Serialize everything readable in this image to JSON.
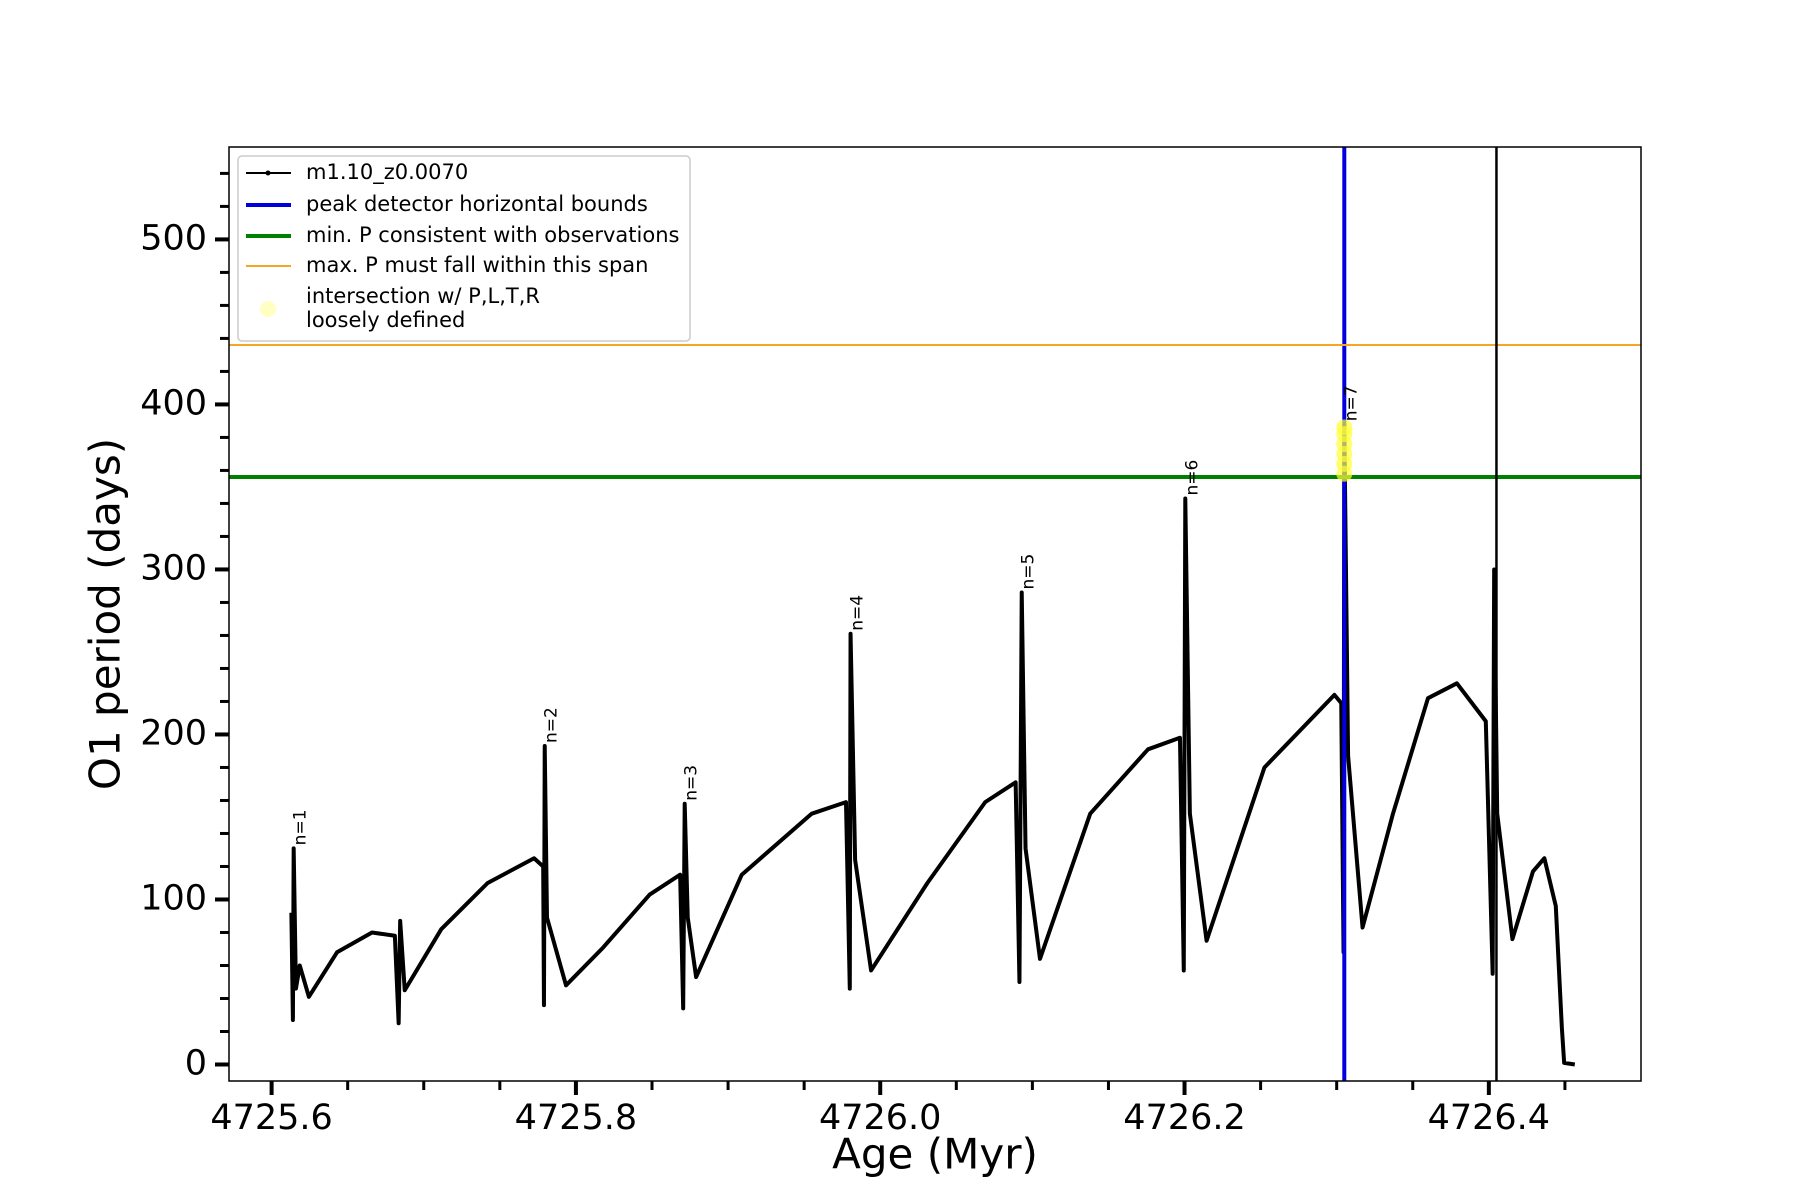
{
  "chart_data": {
    "type": "line",
    "xlabel": "Age (Myr)",
    "ylabel": "O1 period (days)",
    "xlim": [
      4725.572,
      4726.5
    ],
    "ylim": [
      -10,
      556
    ],
    "xticks": [
      4725.6,
      4725.8,
      {
        "value": 4726,
        "label": "4726.0"
      },
      4726.2,
      4726.4
    ],
    "yticks": [
      0,
      100,
      200,
      300,
      400,
      500
    ],
    "xminorticks": [
      4725.65,
      4725.7,
      4725.75,
      4725.85,
      4725.9,
      4725.95,
      4726.05,
      4726.1,
      4726.15,
      4726.25,
      4726.3,
      4726.35,
      4726.45
    ],
    "yminorticks": [
      20,
      40,
      60,
      80,
      120,
      140,
      160,
      180,
      220,
      240,
      260,
      280,
      320,
      340,
      360,
      380,
      420,
      440,
      460,
      480,
      520,
      540
    ],
    "series": [
      {
        "name": "m1.10_z0.0070",
        "color": "#000000",
        "x": [
          4725.613,
          4725.614,
          4725.6145,
          4725.616,
          4725.6185,
          4725.6245,
          4725.643,
          4725.666,
          4725.681,
          4725.6835,
          4725.6845,
          4725.6875,
          4725.7115,
          4725.742,
          4725.7725,
          4725.7785,
          4725.779,
          4725.7795,
          4725.781,
          4725.7935,
          4725.818,
          4725.8485,
          4725.8685,
          4725.8705,
          4725.8715,
          4725.8735,
          4725.879,
          4725.909,
          4725.955,
          4725.9775,
          4725.98,
          4725.9805,
          4725.9835,
          4725.994,
          4726.031,
          4726.069,
          4726.089,
          4726.0915,
          4726.093,
          4726.0955,
          4726.105,
          4726.138,
          4726.176,
          4726.197,
          4726.1995,
          4726.2005,
          4726.2035,
          4726.2145,
          4726.2525,
          4726.2985,
          4726.303,
          4726.3045,
          4726.305,
          4726.3075,
          4726.317,
          4726.337,
          4726.36,
          4726.379,
          4726.398,
          4726.4025,
          4726.4035,
          4726.4055,
          4726.4155,
          4726.429,
          4726.4365,
          4726.444,
          4726.448,
          4726.4495,
          4726.4565
        ],
        "values": [
          92,
          27,
          131,
          46,
          60,
          41,
          68,
          80,
          78,
          25,
          87,
          45,
          82,
          110,
          125,
          120,
          36,
          193,
          89,
          48,
          71,
          103,
          115,
          34,
          158,
          89,
          53,
          115,
          152,
          159,
          46,
          261,
          124,
          57,
          110,
          159,
          171,
          50,
          286,
          131,
          64,
          152,
          191,
          198,
          57,
          343,
          152,
          75,
          180,
          224,
          219,
          68,
          388,
          187,
          83,
          152,
          222,
          231,
          208,
          55,
          300,
          152,
          76,
          117,
          125,
          96,
          22,
          1,
          0
        ]
      }
    ],
    "intersection": {
      "name": "intersection w/ P,L,T,R\nloosely defined",
      "color": "#ffff33",
      "x": [
        4726.305,
        4726.305,
        4726.305,
        4726.305,
        4726.305,
        4726.305
      ],
      "values": [
        358,
        364,
        370,
        376,
        382,
        386
      ]
    },
    "reference_lines": [
      {
        "name": "peak detector horizontal bounds",
        "orientation": "vertical",
        "color": "#0000dd",
        "values": [
          4726.305
        ]
      },
      {
        "name": "min. P consistent with observations",
        "orientation": "horizontal",
        "color": "#008000",
        "values": [
          356
        ]
      },
      {
        "name": "max. P must fall within this span",
        "orientation": "horizontal",
        "color": "#f5a623",
        "values": [
          436
        ]
      }
    ],
    "extra_lines": [
      {
        "orientation": "vertical",
        "color": "#000000",
        "values": [
          4726.405
        ]
      }
    ],
    "annotations": [
      {
        "text": "n=1",
        "x": 4725.6145,
        "y": 131
      },
      {
        "text": "n=2",
        "x": 4725.7795,
        "y": 193
      },
      {
        "text": "n=3",
        "x": 4725.8715,
        "y": 158
      },
      {
        "text": "n=4",
        "x": 4725.9805,
        "y": 261
      },
      {
        "text": "n=5",
        "x": 4726.093,
        "y": 286
      },
      {
        "text": "n=6",
        "x": 4726.2005,
        "y": 343
      },
      {
        "text": "n=7",
        "x": 4726.305,
        "y": 388
      }
    ],
    "legend": "upper left"
  }
}
